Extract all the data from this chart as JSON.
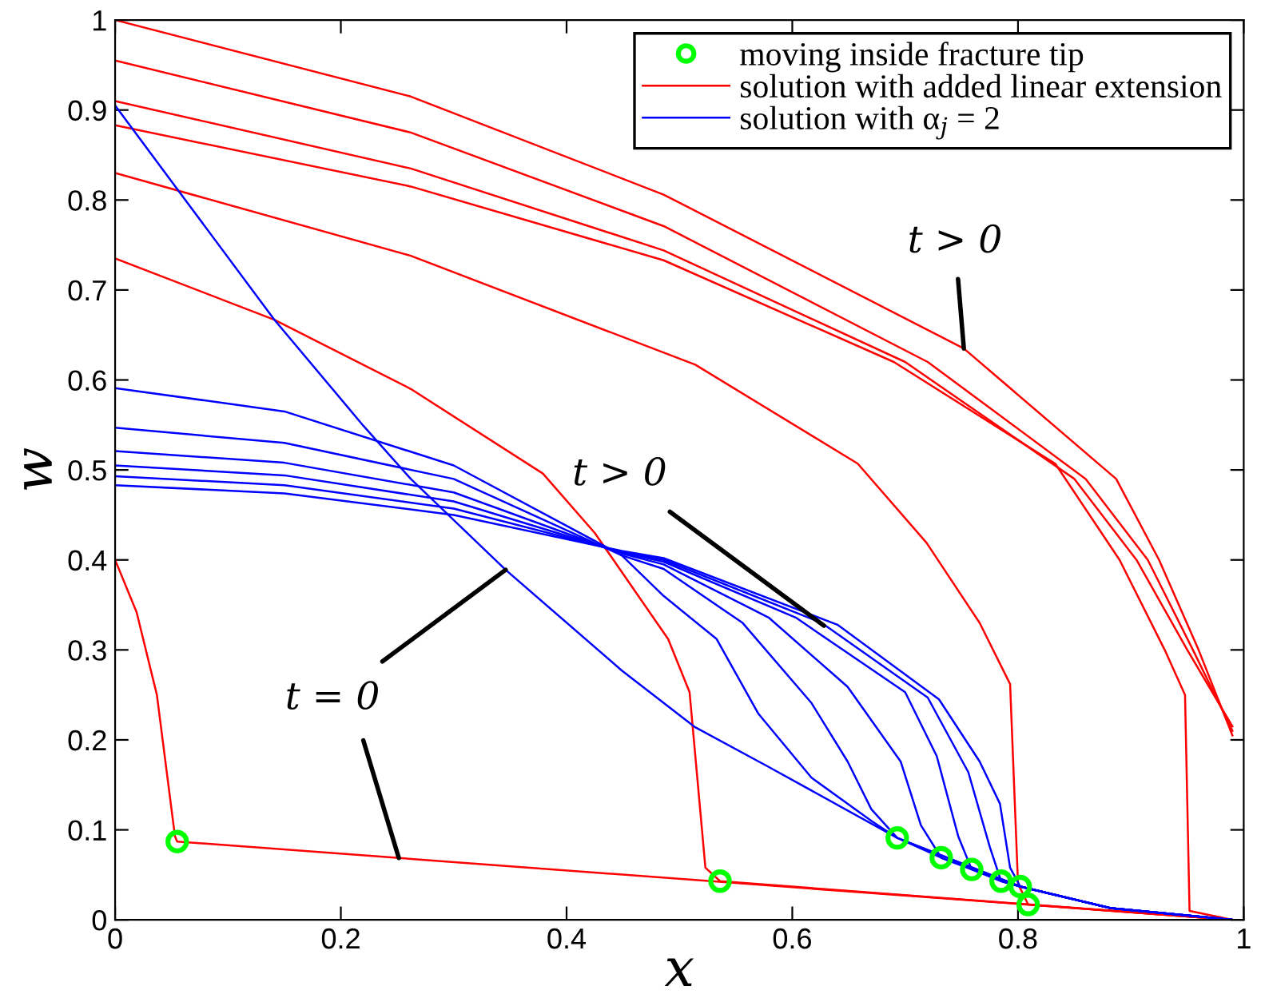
{
  "chart_data": {
    "type": "line",
    "xlabel": "x",
    "ylabel": "w",
    "xlim": [
      0,
      1
    ],
    "ylim": [
      0,
      1
    ],
    "xticks": [
      0,
      0.2,
      0.4,
      0.6,
      0.8,
      1
    ],
    "yticks": [
      0,
      0.1,
      0.2,
      0.3,
      0.4,
      0.5,
      0.6,
      0.7,
      0.8,
      0.9,
      1
    ],
    "legend": "top right",
    "annotations": [
      {
        "text": "t > 0",
        "x": 0.752,
        "y": 0.635
      },
      {
        "text": "t > 0",
        "x": 0.628,
        "y": 0.327
      },
      {
        "text": "t = 0",
        "x": 0.346,
        "y": 0.389
      }
    ],
    "series": [
      {
        "name": "moving inside fracture tip",
        "type": "scatter",
        "marker": "circle",
        "color": "#00ff00",
        "x": [
          0.055,
          0.536,
          0.693,
          0.732,
          0.759,
          0.785,
          0.802,
          0.809
        ],
        "values": [
          0.087,
          0.043,
          0.091,
          0.069,
          0.056,
          0.043,
          0.037,
          0.017
        ]
      },
      {
        "name": "solution with added linear extension",
        "color": "#ff0000",
        "x": [
          0,
          0.019,
          0.037,
          0.053,
          0.055,
          0.99
        ],
        "values": [
          0.4,
          0.342,
          0.25,
          0.093,
          0.087,
          0.0
        ]
      },
      {
        "color": "#ff0000",
        "x": [
          0,
          0.141,
          0.262,
          0.379,
          0.425,
          0.49,
          0.509,
          0.523,
          0.536,
          0.99
        ],
        "values": [
          0.735,
          0.667,
          0.59,
          0.496,
          0.43,
          0.312,
          0.253,
          0.058,
          0.043,
          0.0
        ]
      },
      {
        "color": "#ff0000",
        "x": [
          0,
          0.262,
          0.514,
          0.658,
          0.719,
          0.766,
          0.793,
          0.8,
          0.809,
          0.99
        ],
        "values": [
          0.83,
          0.738,
          0.617,
          0.507,
          0.419,
          0.33,
          0.262,
          0.04,
          0.017,
          0.0
        ]
      },
      {
        "color": "#ff0000",
        "x": [
          0,
          0.262,
          0.486,
          0.752,
          0.887,
          0.925,
          0.96,
          0.99
        ],
        "values": [
          1.0,
          0.915,
          0.806,
          0.635,
          0.49,
          0.4,
          0.3,
          0.205
        ]
      },
      {
        "color": "#ff0000",
        "x": [
          0,
          0.262,
          0.486,
          0.72,
          0.86,
          0.915,
          0.955,
          0.99
        ],
        "values": [
          0.955,
          0.875,
          0.771,
          0.62,
          0.49,
          0.4,
          0.3,
          0.21
        ]
      },
      {
        "color": "#ff0000",
        "x": [
          0,
          0.262,
          0.486,
          0.7,
          0.85,
          0.905,
          0.95,
          0.99
        ],
        "values": [
          0.91,
          0.835,
          0.744,
          0.62,
          0.49,
          0.4,
          0.3,
          0.215
        ]
      },
      {
        "color": "#ff0000",
        "x": [
          0,
          0.262,
          0.486,
          0.69,
          0.833,
          0.89,
          0.93,
          0.948,
          0.952,
          0.99
        ],
        "values": [
          0.883,
          0.815,
          0.733,
          0.62,
          0.507,
          0.4,
          0.3,
          0.25,
          0.01,
          0.0
        ]
      },
      {
        "name": "solution with α$_{j}$ = 2",
        "color": "#0000ff",
        "x": [
          0,
          0.141,
          0.22,
          0.262,
          0.346,
          0.449,
          0.514,
          0.579,
          0.693,
          0.732,
          0.759,
          0.785,
          0.802,
          0.882,
          0.99
        ],
        "values": [
          0.905,
          0.667,
          0.549,
          0.49,
          0.389,
          0.277,
          0.214,
          0.17,
          0.091,
          0.069,
          0.056,
          0.043,
          0.037,
          0.013,
          0.0
        ]
      },
      {
        "color": "#0000ff",
        "x": [
          0,
          0.15,
          0.3,
          0.449,
          0.486,
          0.533,
          0.57,
          0.617,
          0.67,
          0.693,
          0.802,
          0.882,
          0.99
        ],
        "values": [
          0.591,
          0.565,
          0.505,
          0.405,
          0.36,
          0.312,
          0.229,
          0.158,
          0.11,
          0.091,
          0.037,
          0.013,
          0.0
        ]
      },
      {
        "color": "#0000ff",
        "x": [
          0,
          0.15,
          0.3,
          0.449,
          0.486,
          0.556,
          0.617,
          0.649,
          0.67,
          0.693,
          0.802,
          0.882,
          0.99
        ],
        "values": [
          0.547,
          0.53,
          0.49,
          0.405,
          0.39,
          0.33,
          0.241,
          0.176,
          0.123,
          0.091,
          0.037,
          0.013,
          0.0
        ]
      },
      {
        "color": "#0000ff",
        "x": [
          0,
          0.15,
          0.3,
          0.449,
          0.486,
          0.579,
          0.649,
          0.696,
          0.714,
          0.732,
          0.802,
          0.882,
          0.99
        ],
        "values": [
          0.521,
          0.508,
          0.475,
          0.407,
          0.395,
          0.336,
          0.259,
          0.176,
          0.105,
          0.069,
          0.037,
          0.013,
          0.0
        ]
      },
      {
        "color": "#0000ff",
        "x": [
          0,
          0.15,
          0.3,
          0.449,
          0.486,
          0.603,
          0.7,
          0.728,
          0.747,
          0.759,
          0.802,
          0.882,
          0.99
        ],
        "values": [
          0.505,
          0.494,
          0.465,
          0.408,
          0.398,
          0.336,
          0.253,
          0.182,
          0.093,
          0.056,
          0.037,
          0.013,
          0.0
        ]
      },
      {
        "color": "#0000ff",
        "x": [
          0,
          0.15,
          0.3,
          0.449,
          0.486,
          0.626,
          0.72,
          0.756,
          0.775,
          0.785,
          0.802,
          0.882,
          0.99
        ],
        "values": [
          0.493,
          0.483,
          0.457,
          0.409,
          0.4,
          0.33,
          0.247,
          0.164,
          0.081,
          0.043,
          0.037,
          0.013,
          0.0
        ]
      },
      {
        "color": "#0000ff",
        "x": [
          0,
          0.15,
          0.3,
          0.449,
          0.486,
          0.64,
          0.73,
          0.766,
          0.784,
          0.793,
          0.802,
          0.882,
          0.99
        ],
        "values": [
          0.483,
          0.474,
          0.45,
          0.41,
          0.402,
          0.328,
          0.245,
          0.176,
          0.129,
          0.058,
          0.037,
          0.013,
          0.0
        ]
      }
    ]
  }
}
